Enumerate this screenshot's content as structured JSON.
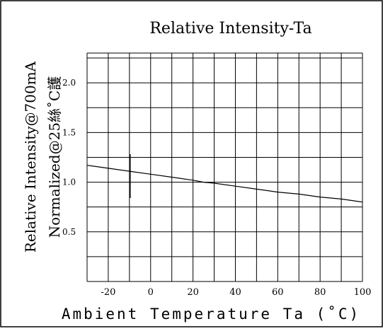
{
  "chart_data": {
    "type": "line",
    "title": "Relative Intensity-Ta",
    "ylabel": "Relative Intensity@700mA",
    "ylabel2": "Normalized@25絲˚C護",
    "xlabel": "Ambient Temperature Ta (˚C)",
    "x_ticks": [
      "-20",
      "0",
      "20",
      "40",
      "60",
      "80",
      "100"
    ],
    "x_tick_values": [
      -20,
      0,
      20,
      40,
      60,
      80,
      100
    ],
    "y_ticks": [
      "0.5",
      "1.0",
      "1.5",
      "2.0"
    ],
    "y_tick_values": [
      0.5,
      1.0,
      1.5,
      2.0
    ],
    "xlim": [
      -30,
      100
    ],
    "ylim": [
      0,
      2.3
    ],
    "grid": true,
    "series": [
      {
        "x": [
          -30,
          -20,
          -10,
          0,
          10,
          20,
          25,
          30,
          40,
          50,
          60,
          70,
          80,
          90,
          100
        ],
        "y": [
          1.17,
          1.14,
          1.11,
          1.08,
          1.05,
          1.02,
          1.0,
          0.99,
          0.96,
          0.93,
          0.9,
          0.88,
          0.85,
          0.83,
          0.8
        ]
      }
    ]
  }
}
